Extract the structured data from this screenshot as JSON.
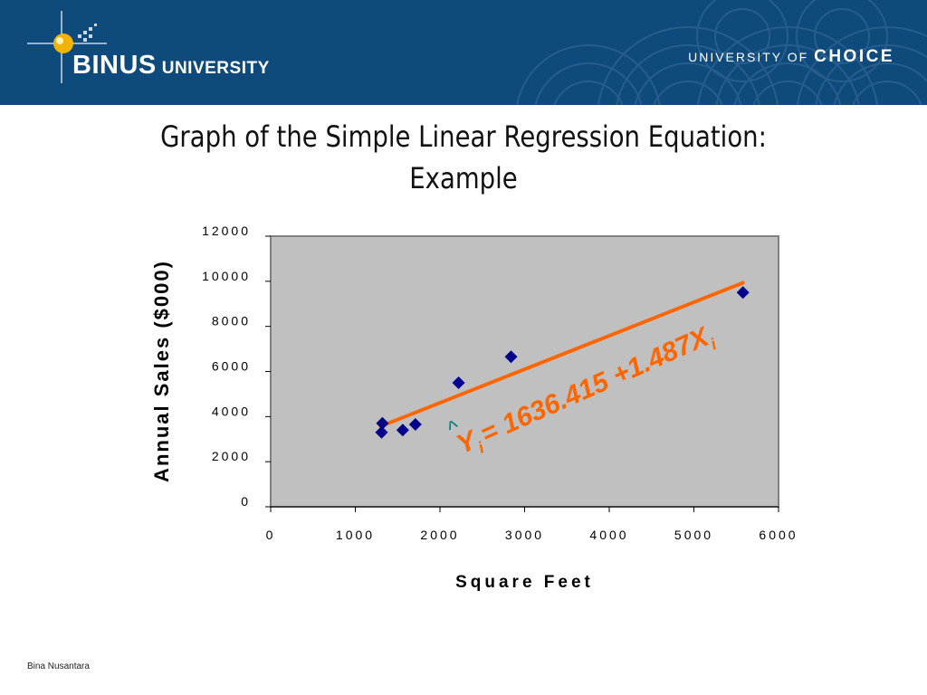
{
  "header": {
    "logo_name": "BINUS",
    "logo_suffix": "UNIVERSITY",
    "tagline_prefix": "UNIVERSITY OF",
    "tagline_emphasis": "CHOICE",
    "colors": {
      "banner": "#0f4a7c",
      "logo_accent": "#f2b400"
    }
  },
  "slide": {
    "title_line1": "Graph of the Simple Linear Regression Equation:",
    "title_line2": "Example",
    "footer": "Bina Nusantara"
  },
  "chart_data": {
    "type": "scatter",
    "title": "",
    "xlabel": "Square Feet",
    "ylabel": "Annual Sales ($000)",
    "xlim": [
      0,
      6000
    ],
    "ylim": [
      0,
      12000
    ],
    "x_ticks": [
      "0",
      "1000",
      "2000",
      "3000",
      "4000",
      "5000",
      "6000"
    ],
    "y_ticks": [
      "0",
      "2000",
      "4000",
      "6000",
      "8000",
      "10000",
      "12000"
    ],
    "grid": false,
    "plot_background": "#c0c0c0",
    "points": [
      {
        "x": 1310,
        "y": 3300
      },
      {
        "x": 1320,
        "y": 3700
      },
      {
        "x": 1560,
        "y": 3400
      },
      {
        "x": 1710,
        "y": 3650
      },
      {
        "x": 2220,
        "y": 5500
      },
      {
        "x": 2840,
        "y": 6650
      },
      {
        "x": 5580,
        "y": 9500
      }
    ],
    "point_color": "#00008b",
    "regression_line": {
      "intercept": 1636.415,
      "slope": 1.487,
      "x_range": [
        1300,
        5580
      ],
      "color": "#ff6600"
    },
    "equation_label": {
      "y_symbol": "Y",
      "y_sub": "i",
      "hat": "^",
      "body": "= 1636.415 +1.487X",
      "x_sub": "i",
      "color": "#ff6600",
      "hat_color": "#008080"
    }
  }
}
